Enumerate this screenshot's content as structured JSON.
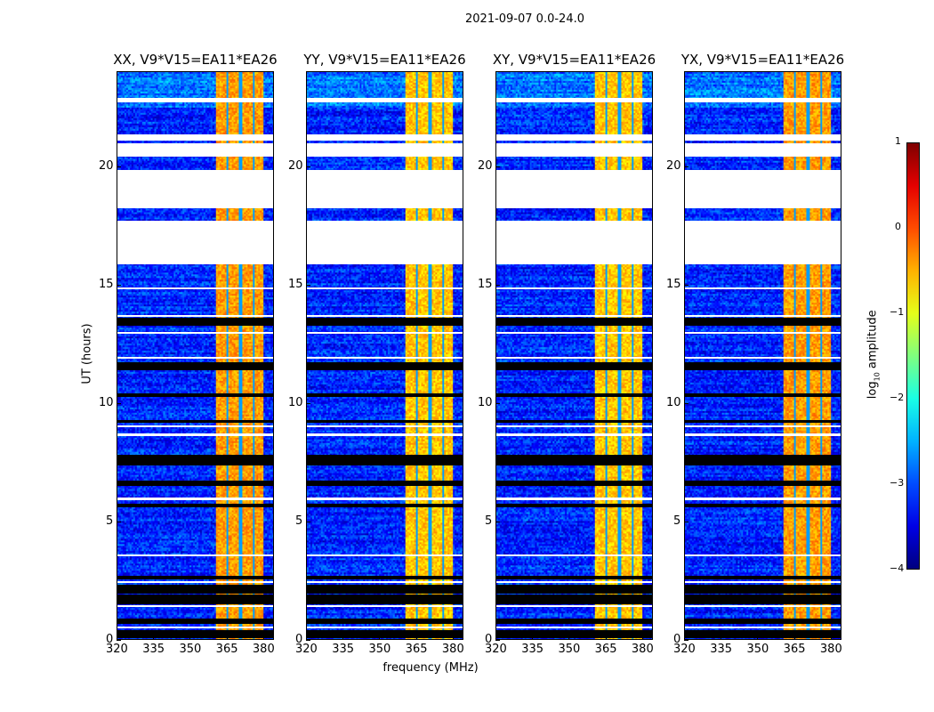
{
  "chart_data": {
    "type": "heatmap",
    "title": "2021-09-07 0.0-24.0",
    "xlabel": "frequency (MHz)",
    "ylabel": "UT (hours)",
    "xlim": [
      320,
      384.4
    ],
    "ylim": [
      0,
      24
    ],
    "xticks": [
      320,
      335,
      350,
      365,
      380
    ],
    "yticks": [
      0,
      5,
      10,
      15,
      20
    ],
    "colorbar": {
      "label_main": "log",
      "label_sub": "10",
      "label_rest": " amplitude",
      "range": [
        -4,
        1
      ],
      "ticks": [
        1,
        0,
        -1,
        -2,
        -3,
        -4
      ],
      "colormap": "jet"
    },
    "panels": [
      {
        "title": "XX, V9*V15=EA11*EA26"
      },
      {
        "title": "YY, V9*V15=EA11*EA26"
      },
      {
        "title": "XY, V9*V15=EA11*EA26"
      },
      {
        "title": "YX, V9*V15=EA11*EA26"
      }
    ],
    "background_log_amp": -3.2,
    "rfi_band_mhz": [
      360.7,
      380.0
    ],
    "rfi_band_log_amp": -0.5,
    "rfi_band_dark_channels_mhz": [
      365.0,
      370.5,
      376.0
    ],
    "no_data_hours": [
      [
        22.72,
        22.9
      ],
      [
        21.1,
        21.37
      ],
      [
        20.45,
        20.99
      ],
      [
        18.25,
        19.85
      ],
      [
        15.9,
        17.72
      ],
      [
        13.66,
        13.75
      ],
      [
        12.95,
        13.05
      ],
      [
        11.95,
        12.0
      ],
      [
        8.65,
        8.75
      ],
      [
        5.95,
        6.05
      ],
      [
        3.55,
        3.65
      ],
      [
        2.45,
        2.5
      ],
      [
        1.45,
        1.5
      ],
      [
        0.55,
        0.6
      ],
      [
        14.85,
        14.9
      ],
      [
        9.05,
        9.1
      ]
    ],
    "flagged_zero_hours": [
      [
        13.3,
        13.62
      ],
      [
        11.4,
        11.75
      ],
      [
        10.3,
        10.45
      ],
      [
        9.2,
        9.3
      ],
      [
        7.4,
        7.85
      ],
      [
        6.55,
        6.75
      ],
      [
        5.65,
        5.8
      ],
      [
        2.6,
        2.75
      ],
      [
        2.0,
        2.35
      ],
      [
        1.55,
        1.95
      ],
      [
        0.7,
        0.95
      ],
      [
        0.1,
        0.45
      ]
    ]
  }
}
